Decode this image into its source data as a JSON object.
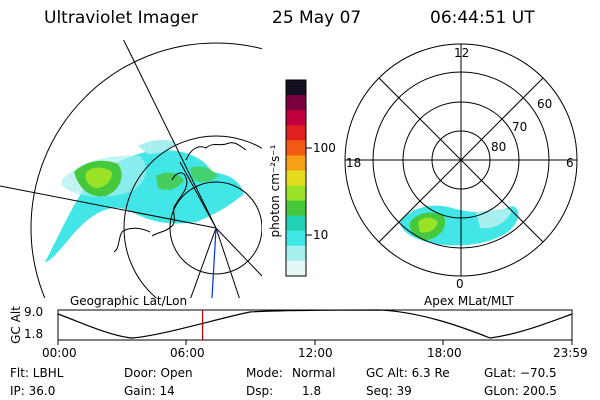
{
  "header": {
    "instrument": "Ultraviolet Imager",
    "date": "25 May 07",
    "time": "06:44:51 UT"
  },
  "colorbar": {
    "unit_label": "photon cm⁻²s⁻¹",
    "tick_100": "100",
    "tick_10": "10",
    "colors": [
      "#111122",
      "#7a0040",
      "#c0003c",
      "#e02020",
      "#f05a14",
      "#f5a018",
      "#e6dc1e",
      "#9ae228",
      "#46c83c",
      "#22d2b4",
      "#42e6e6",
      "#a8f0f0",
      "#e6f6f6"
    ]
  },
  "geographic_panel": {
    "label": "Geographic Lat/Lon"
  },
  "apex_panel": {
    "label": "Apex MLat/MLT",
    "mlt_labels": {
      "top": "12",
      "left": "18",
      "right": "6",
      "bottom": "0"
    },
    "lat_labels": [
      "60",
      "70",
      "80"
    ]
  },
  "altitude_plot": {
    "ylabel": "GC Alt",
    "ymax_label": "9.0",
    "ymin_label": "1.8",
    "x_ticks": [
      "00:00",
      "06:00",
      "12:00",
      "18:00",
      "23:59"
    ],
    "current_time_hours": 6.75
  },
  "status": {
    "flt": "Flt: LBHL",
    "ip": "IP: 36.0",
    "door": "Door: Open",
    "gain": "Gain: 14",
    "mode_label": "Mode:",
    "mode_value": "Normal",
    "dsp_label": "Dsp:",
    "dsp_value": "1.8",
    "gc_alt": "GC Alt: 6.3 Re",
    "seq": "Seq: 39",
    "glat": "GLat: −70.5",
    "glon": "GLon: 200.5"
  }
}
